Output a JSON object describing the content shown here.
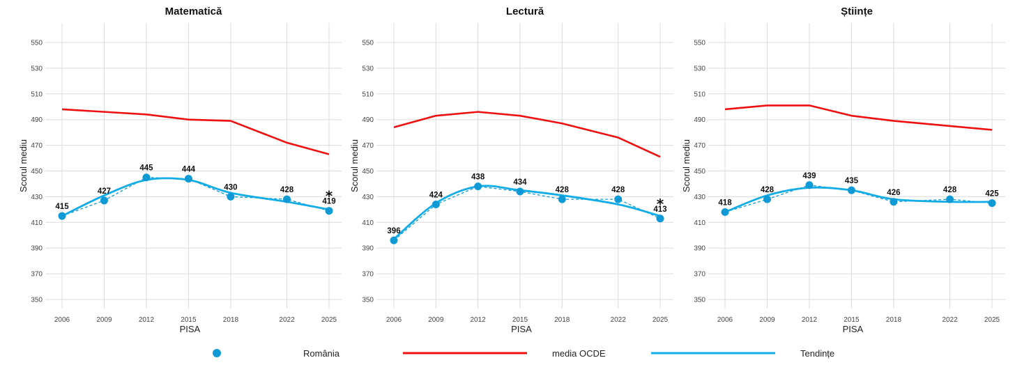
{
  "colors": {
    "romania": "#0f9ad6",
    "oecd": "#ee1111",
    "trend": "#12ace6",
    "grid": "#dcdcdc"
  },
  "legend": {
    "romania_label": "România",
    "oecd_label": "media OCDE",
    "trend_label": "Tendințe"
  },
  "chart_data": [
    {
      "type": "line",
      "title": "Matematică",
      "xlabel": "PISA",
      "ylabel": "Scorul mediu",
      "ylim": [
        342,
        566
      ],
      "yticks": [
        350,
        370,
        390,
        410,
        430,
        450,
        470,
        490,
        510,
        530,
        550
      ],
      "x": [
        2006,
        2009,
        2012,
        2015,
        2018,
        2022,
        2025
      ],
      "grid": true,
      "series": [
        {
          "name": "România",
          "kind": "points",
          "values": [
            415,
            427,
            445,
            444,
            430,
            428,
            419
          ]
        },
        {
          "name": "media OCDE",
          "kind": "line",
          "values": [
            498,
            496,
            494,
            490,
            489,
            472,
            463
          ]
        },
        {
          "name": "Tendințe",
          "kind": "smooth",
          "values": [
            415,
            431,
            443,
            443,
            433,
            426,
            420
          ]
        }
      ],
      "annotations": [
        {
          "x": 2025,
          "text": "*"
        }
      ]
    },
    {
      "type": "line",
      "title": "Lectură",
      "xlabel": "PISA",
      "ylabel": "Scorul mediu",
      "ylim": [
        342,
        566
      ],
      "yticks": [
        350,
        370,
        390,
        410,
        430,
        450,
        470,
        490,
        510,
        530,
        550
      ],
      "x": [
        2006,
        2009,
        2012,
        2015,
        2018,
        2022,
        2025
      ],
      "grid": true,
      "series": [
        {
          "name": "România",
          "kind": "points",
          "values": [
            396,
            424,
            438,
            434,
            428,
            428,
            413
          ]
        },
        {
          "name": "media OCDE",
          "kind": "line",
          "values": [
            484,
            493,
            496,
            493,
            487,
            476,
            461
          ]
        },
        {
          "name": "Tendințe",
          "kind": "smooth",
          "values": [
            397,
            425,
            438,
            435,
            431,
            424,
            415
          ]
        }
      ],
      "annotations": [
        {
          "x": 2025,
          "text": "*"
        }
      ]
    },
    {
      "type": "line",
      "title": "Științe",
      "xlabel": "PISA",
      "ylabel": "Scorul mediu",
      "ylim": [
        342,
        566
      ],
      "yticks": [
        350,
        370,
        390,
        410,
        430,
        450,
        470,
        490,
        510,
        530,
        550
      ],
      "x": [
        2006,
        2009,
        2012,
        2015,
        2018,
        2022,
        2025
      ],
      "grid": true,
      "series": [
        {
          "name": "România",
          "kind": "points",
          "values": [
            418,
            428,
            439,
            435,
            426,
            428,
            425
          ]
        },
        {
          "name": "media OCDE",
          "kind": "line",
          "values": [
            498,
            501,
            501,
            493,
            489,
            485,
            482
          ]
        },
        {
          "name": "Tendințe",
          "kind": "smooth",
          "values": [
            418,
            431,
            437,
            435,
            428,
            426,
            426
          ]
        }
      ],
      "annotations": []
    }
  ]
}
